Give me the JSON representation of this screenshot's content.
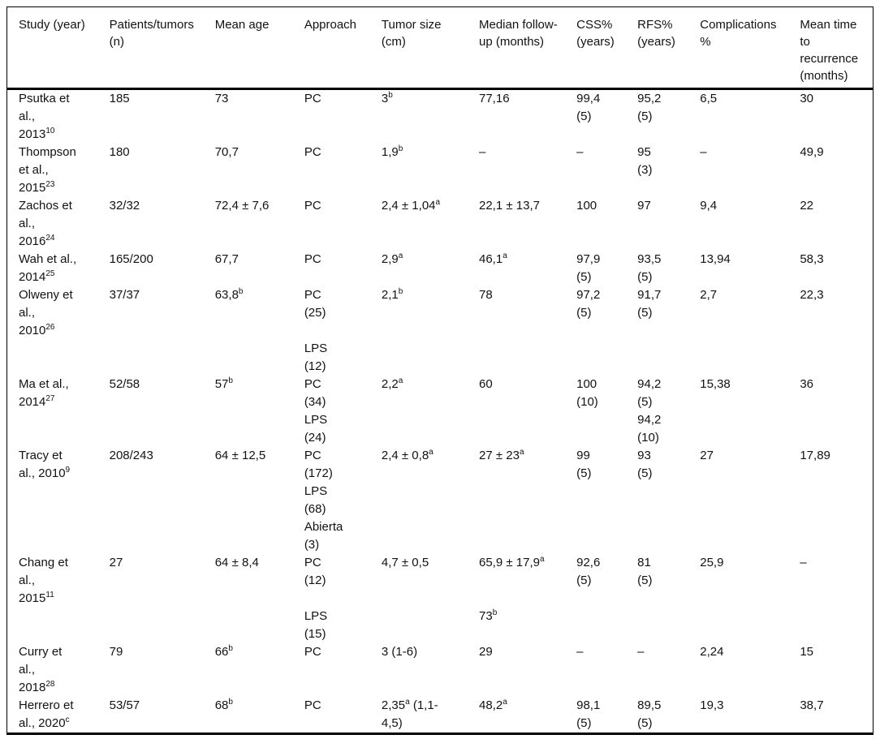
{
  "table": {
    "columns": [
      {
        "id": "study",
        "label_lines": [
          "Study (year)"
        ]
      },
      {
        "id": "patients",
        "label_lines": [
          "Patients/tumors",
          "(n)"
        ]
      },
      {
        "id": "mean_age",
        "label_lines": [
          "Mean age"
        ]
      },
      {
        "id": "approach",
        "label_lines": [
          "Approach"
        ]
      },
      {
        "id": "tumor_size",
        "label_lines": [
          "Tumor size",
          "(cm)"
        ]
      },
      {
        "id": "follow_up",
        "label_lines": [
          "Median follow-",
          "up (months)"
        ]
      },
      {
        "id": "css",
        "label_lines": [
          "CSS%",
          "(years)"
        ]
      },
      {
        "id": "rfs",
        "label_lines": [
          "RFS%",
          "(years)"
        ]
      },
      {
        "id": "complications",
        "label_lines": [
          "Complications",
          "%"
        ]
      },
      {
        "id": "recurrence_time",
        "label_lines": [
          "Mean time",
          "to",
          "recurrence",
          "(months)"
        ]
      }
    ],
    "rows": [
      {
        "study": [
          "Psutka et",
          "al.,",
          "2013^{10}"
        ],
        "patients": [
          "185"
        ],
        "mean_age": [
          "73"
        ],
        "approach": [
          "PC"
        ],
        "tumor_size": [
          "3^{b}"
        ],
        "follow_up": [
          "77,16"
        ],
        "css": [
          "99,4",
          "(5)"
        ],
        "rfs": [
          "95,2",
          "(5)"
        ],
        "complications": [
          "6,5"
        ],
        "recurrence_time": [
          "30"
        ]
      },
      {
        "study": [
          "Thompson",
          "et al.,",
          "2015^{23}"
        ],
        "patients": [
          "180"
        ],
        "mean_age": [
          "70,7"
        ],
        "approach": [
          "PC"
        ],
        "tumor_size": [
          "1,9^{b}"
        ],
        "follow_up": [
          "–"
        ],
        "css": [
          "–"
        ],
        "rfs": [
          "95",
          "(3)"
        ],
        "complications": [
          "–"
        ],
        "recurrence_time": [
          "49,9"
        ]
      },
      {
        "study": [
          "Zachos et",
          "al.,",
          "2016^{24}"
        ],
        "patients": [
          "32/32"
        ],
        "mean_age": [
          "72,4 ± 7,6"
        ],
        "approach": [
          "PC"
        ],
        "tumor_size": [
          "2,4 ± 1,04^{a}"
        ],
        "follow_up": [
          "22,1 ± 13,7"
        ],
        "css": [
          "100"
        ],
        "rfs": [
          "97"
        ],
        "complications": [
          "9,4"
        ],
        "recurrence_time": [
          "22"
        ]
      },
      {
        "study": [
          "Wah et al.,",
          "2014^{25}"
        ],
        "patients": [
          "165/200"
        ],
        "mean_age": [
          "67,7"
        ],
        "approach": [
          "PC"
        ],
        "tumor_size": [
          "2,9^{a}"
        ],
        "follow_up": [
          "46,1^{a}"
        ],
        "css": [
          "97,9",
          "(5)"
        ],
        "rfs": [
          "93,5",
          "(5)"
        ],
        "complications": [
          "13,94"
        ],
        "recurrence_time": [
          "58,3"
        ]
      },
      {
        "study": [
          "Olweny et",
          "al.,",
          "2010^{26}"
        ],
        "patients": [
          "37/37"
        ],
        "mean_age": [
          "63,8^{b}"
        ],
        "approach": [
          "PC",
          "(25)",
          "",
          "LPS",
          "(12)"
        ],
        "tumor_size": [
          "2,1^{b}"
        ],
        "follow_up": [
          "78"
        ],
        "css": [
          "97,2",
          "(5)"
        ],
        "rfs": [
          "91,7",
          "(5)"
        ],
        "complications": [
          "2,7"
        ],
        "recurrence_time": [
          "22,3"
        ]
      },
      {
        "study": [
          "Ma et al.,",
          "2014^{27}"
        ],
        "patients": [
          "52/58"
        ],
        "mean_age": [
          "57^{b}"
        ],
        "approach": [
          "PC",
          "(34)",
          "LPS",
          "(24)"
        ],
        "tumor_size": [
          "2,2^{a}"
        ],
        "follow_up": [
          "60"
        ],
        "css": [
          "100",
          "(10)"
        ],
        "rfs": [
          "94,2",
          "(5)",
          "94,2",
          "(10)"
        ],
        "complications": [
          "15,38"
        ],
        "recurrence_time": [
          "36"
        ]
      },
      {
        "study": [
          "Tracy et",
          "al., 2010^{9}"
        ],
        "patients": [
          "208/243"
        ],
        "mean_age": [
          "64 ± 12,5"
        ],
        "approach": [
          "PC",
          "(172)",
          "LPS",
          "(68)",
          "Abierta",
          "(3)"
        ],
        "tumor_size": [
          "2,4 ± 0,8^{a}"
        ],
        "follow_up": [
          "27 ± 23^{a}"
        ],
        "css": [
          "99",
          "(5)"
        ],
        "rfs": [
          "93",
          "(5)"
        ],
        "complications": [
          "27"
        ],
        "recurrence_time": [
          "17,89"
        ]
      },
      {
        "study": [
          "Chang et",
          "al.,",
          "2015^{11}"
        ],
        "patients": [
          "27"
        ],
        "mean_age": [
          "64 ± 8,4"
        ],
        "approach": [
          "PC",
          "(12)",
          "",
          "LPS",
          "(15)"
        ],
        "tumor_size": [
          "4,7 ± 0,5"
        ],
        "follow_up": [
          "65,9 ± 17,9^{a}",
          "",
          "",
          "73^{b}"
        ],
        "css": [
          "92,6",
          "(5)"
        ],
        "rfs": [
          "81",
          "(5)"
        ],
        "complications": [
          "25,9"
        ],
        "recurrence_time": [
          "–"
        ]
      },
      {
        "study": [
          "Curry et",
          "al.,",
          "2018^{28}"
        ],
        "patients": [
          "79"
        ],
        "mean_age": [
          "66^{b}"
        ],
        "approach": [
          "PC"
        ],
        "tumor_size": [
          "3 (1-6)"
        ],
        "follow_up": [
          "29"
        ],
        "css": [
          "–"
        ],
        "rfs": [
          "–"
        ],
        "complications": [
          "2,24"
        ],
        "recurrence_time": [
          "15"
        ]
      },
      {
        "study": [
          "Herrero et",
          "al., 2020^{c}"
        ],
        "patients": [
          "53/57"
        ],
        "mean_age": [
          "68^{b}"
        ],
        "approach": [
          "PC"
        ],
        "tumor_size": [
          "2,35^{a} (1,1-",
          "4,5)"
        ],
        "follow_up": [
          "48,2^{a}"
        ],
        "css": [
          "98,1",
          "(5)"
        ],
        "rfs": [
          "89,5",
          "(5)"
        ],
        "complications": [
          "19,3"
        ],
        "recurrence_time": [
          "38,7"
        ]
      }
    ]
  }
}
